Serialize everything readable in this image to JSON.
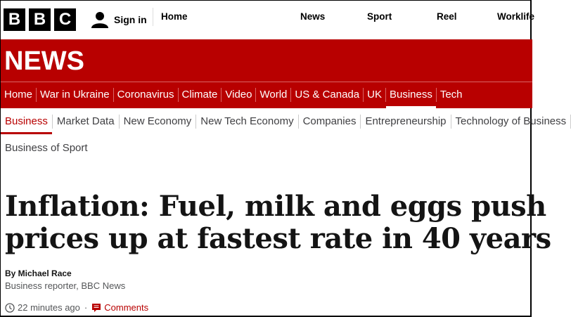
{
  "header": {
    "logo": [
      "B",
      "B",
      "C"
    ],
    "sign_in": "Sign in",
    "nav": [
      "Home",
      "News",
      "Sport",
      "Reel",
      "Worklife"
    ]
  },
  "section": {
    "title": "NEWS",
    "nav": [
      "Home",
      "War in Ukraine",
      "Coronavirus",
      "Climate",
      "Video",
      "World",
      "US & Canada",
      "UK",
      "Business",
      "Tech"
    ],
    "active": "Business"
  },
  "subnav": {
    "items": [
      "Business",
      "Market Data",
      "New Economy",
      "New Tech Economy",
      "Companies",
      "Entrepreneurship",
      "Technology of Business"
    ],
    "second_row": "Business of Sport",
    "active": "Business"
  },
  "article": {
    "title_line1": "Inflation: Fuel, milk and eggs push",
    "title_line2": "prices up at fastest rate in 40 years",
    "byline": "By Michael Race",
    "role": "Business reporter, BBC News",
    "time": "22 minutes ago",
    "separator": "·",
    "comments": "Comments"
  },
  "colors": {
    "brand_red": "#b80000",
    "text": "#141414"
  }
}
